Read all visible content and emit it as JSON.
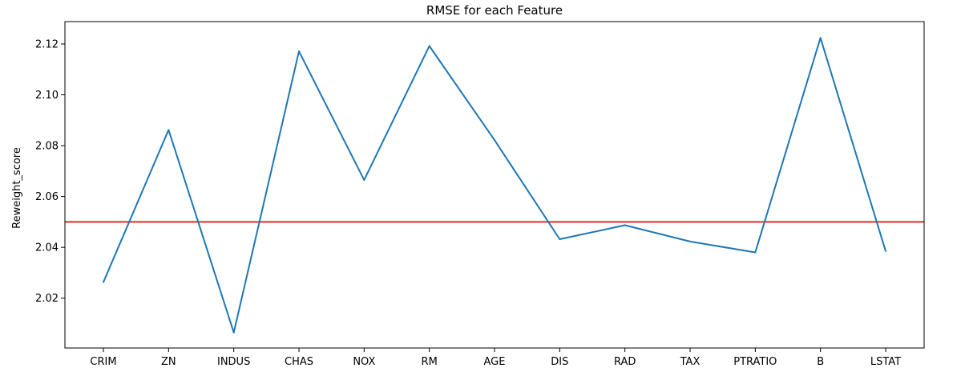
{
  "chart_data": {
    "type": "line",
    "title": "RMSE for each Feature",
    "xlabel": "",
    "ylabel": "Reweight_score",
    "categories": [
      "CRIM",
      "ZN",
      "INDUS",
      "CHAS",
      "NOX",
      "RM",
      "AGE",
      "DIS",
      "RAD",
      "TAX",
      "PTRATIO",
      "B",
      "LSTAT"
    ],
    "series": [
      {
        "values": [
          2.0263,
          2.0862,
          2.0065,
          2.1171,
          2.0665,
          2.1192,
          2.0822,
          2.0432,
          2.0487,
          2.0423,
          2.038,
          2.1224,
          2.0385
        ],
        "color": "#1f77b4"
      }
    ],
    "reference_line": {
      "y": 2.05,
      "color": "#e8282b"
    },
    "ylim": [
      2.0004,
      2.1288
    ],
    "yticks": [
      2.02,
      2.04,
      2.06,
      2.08,
      2.1,
      2.12
    ],
    "ytick_labels": [
      "2.02",
      "2.04",
      "2.06",
      "2.08",
      "2.10",
      "2.12"
    ],
    "grid": false,
    "legend": "none"
  }
}
